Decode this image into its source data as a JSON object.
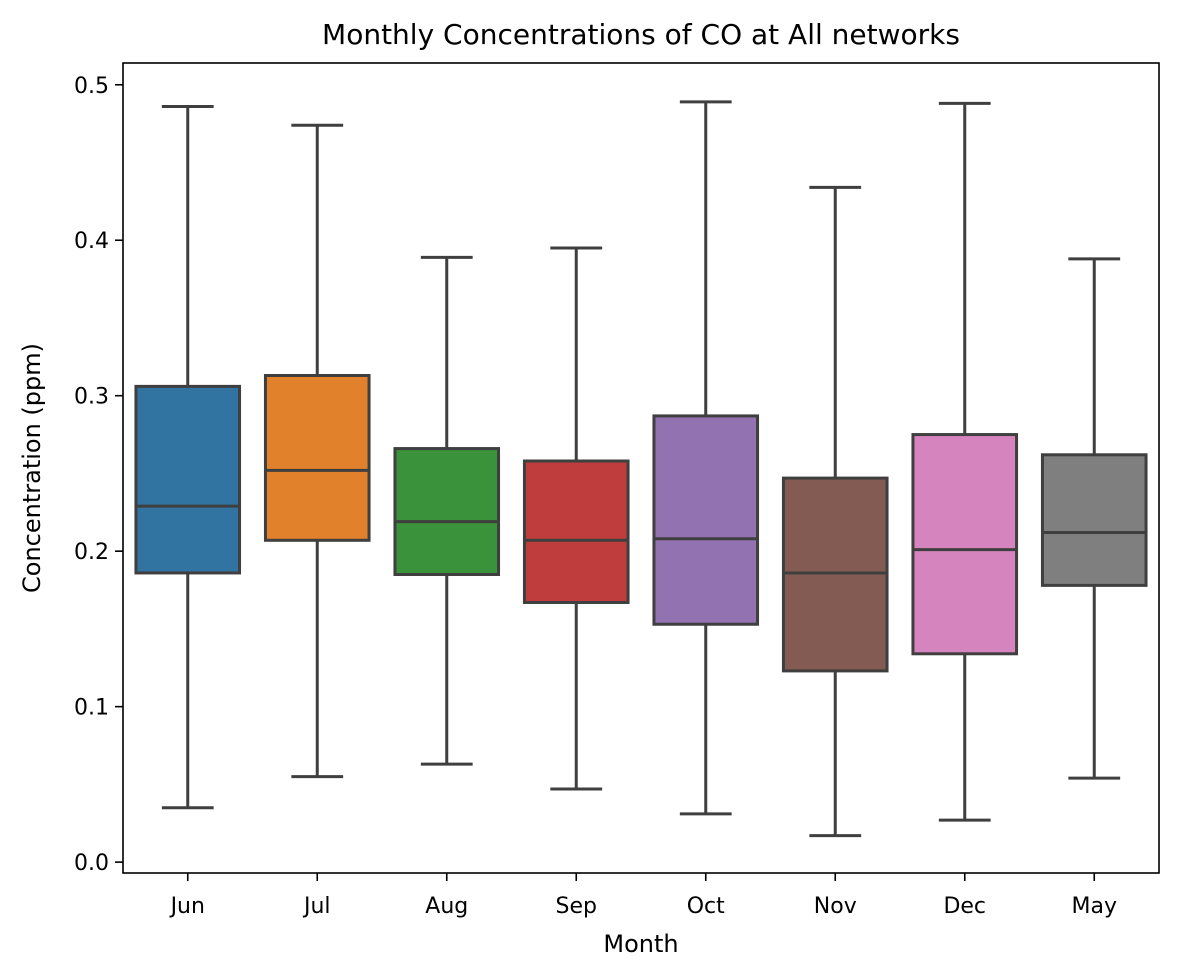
{
  "chart_data": {
    "type": "box",
    "title": "Monthly Concentrations of CO at All networks",
    "xlabel": "Month",
    "ylabel": "Concentration (ppm)",
    "ylim": [
      -0.007,
      0.514
    ],
    "yticks": [
      0.0,
      0.1,
      0.2,
      0.3,
      0.4,
      0.5
    ],
    "ytick_labels": [
      "0.0",
      "0.1",
      "0.2",
      "0.3",
      "0.4",
      "0.5"
    ],
    "grid": false,
    "legend": "none",
    "categories": [
      "Jun",
      "Jul",
      "Aug",
      "Sep",
      "Oct",
      "Nov",
      "Dec",
      "May"
    ],
    "boxes": [
      {
        "label": "Jun",
        "whisker_low": 0.035,
        "q1": 0.186,
        "median": 0.229,
        "q3": 0.306,
        "whisker_high": 0.486,
        "color": "#3274a1"
      },
      {
        "label": "Jul",
        "whisker_low": 0.055,
        "q1": 0.207,
        "median": 0.252,
        "q3": 0.313,
        "whisker_high": 0.474,
        "color": "#e1812c"
      },
      {
        "label": "Aug",
        "whisker_low": 0.063,
        "q1": 0.185,
        "median": 0.219,
        "q3": 0.266,
        "whisker_high": 0.389,
        "color": "#3a923a"
      },
      {
        "label": "Sep",
        "whisker_low": 0.047,
        "q1": 0.167,
        "median": 0.207,
        "q3": 0.258,
        "whisker_high": 0.395,
        "color": "#c03d3e"
      },
      {
        "label": "Oct",
        "whisker_low": 0.031,
        "q1": 0.153,
        "median": 0.208,
        "q3": 0.287,
        "whisker_high": 0.489,
        "color": "#9372b2"
      },
      {
        "label": "Nov",
        "whisker_low": 0.017,
        "q1": 0.123,
        "median": 0.186,
        "q3": 0.247,
        "whisker_high": 0.434,
        "color": "#845b53"
      },
      {
        "label": "Dec",
        "whisker_low": 0.027,
        "q1": 0.134,
        "median": 0.201,
        "q3": 0.275,
        "whisker_high": 0.488,
        "color": "#d684bd"
      },
      {
        "label": "May",
        "whisker_low": 0.054,
        "q1": 0.178,
        "median": 0.212,
        "q3": 0.262,
        "whisker_high": 0.388,
        "color": "#7f7f7f"
      }
    ]
  }
}
